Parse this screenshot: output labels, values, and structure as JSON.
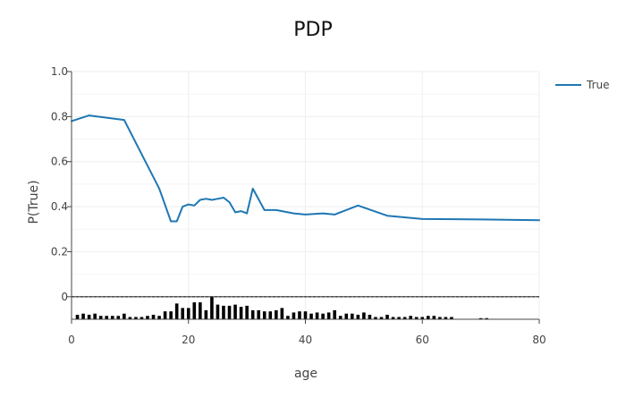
{
  "chart_data": {
    "type": "line",
    "title": "PDP",
    "xlabel": "age",
    "ylabel": "P(True)",
    "xlim": [
      0,
      80
    ],
    "ylim": [
      -0.1,
      1.0
    ],
    "x_ticks": [
      0,
      20,
      40,
      60,
      80
    ],
    "y_ticks": [
      0,
      0.2,
      0.4,
      0.6,
      0.8,
      1.0
    ],
    "y_tick_labels": [
      "0",
      "0.2",
      "0.4",
      "0.6",
      "0.8",
      "1.0"
    ],
    "grid": true,
    "legend_position": "top-right",
    "series": [
      {
        "name": "True",
        "color": "#1f77b4",
        "x": [
          0,
          3,
          9,
          15,
          17,
          18,
          19,
          20,
          21,
          22,
          23,
          24,
          25,
          26,
          27,
          28,
          29,
          30,
          31,
          33,
          35,
          38,
          40,
          43,
          45,
          49,
          54,
          60,
          70,
          80
        ],
        "y": [
          0.78,
          0.805,
          0.785,
          0.48,
          0.335,
          0.335,
          0.4,
          0.41,
          0.405,
          0.43,
          0.435,
          0.43,
          0.435,
          0.44,
          0.42,
          0.375,
          0.38,
          0.37,
          0.48,
          0.385,
          0.385,
          0.37,
          0.365,
          0.37,
          0.365,
          0.405,
          0.36,
          0.345,
          0.343,
          0.34
        ]
      }
    ],
    "rug": {
      "color": "#000000",
      "x": [
        1,
        2,
        3,
        4,
        5,
        6,
        7,
        8,
        9,
        10,
        11,
        12,
        13,
        14,
        15,
        16,
        17,
        18,
        19,
        20,
        21,
        22,
        23,
        24,
        25,
        26,
        27,
        28,
        29,
        30,
        31,
        32,
        33,
        34,
        35,
        36,
        37,
        38,
        39,
        40,
        41,
        42,
        43,
        44,
        45,
        46,
        47,
        48,
        49,
        50,
        51,
        52,
        53,
        54,
        55,
        56,
        57,
        58,
        59,
        60,
        61,
        62,
        63,
        64,
        65,
        70,
        71
      ],
      "values": [
        0.02,
        0.025,
        0.02,
        0.025,
        0.015,
        0.015,
        0.015,
        0.015,
        0.025,
        0.01,
        0.01,
        0.01,
        0.015,
        0.02,
        0.015,
        0.035,
        0.035,
        0.07,
        0.05,
        0.05,
        0.075,
        0.075,
        0.04,
        0.1,
        0.065,
        0.06,
        0.06,
        0.065,
        0.055,
        0.06,
        0.04,
        0.04,
        0.035,
        0.035,
        0.04,
        0.05,
        0.015,
        0.03,
        0.035,
        0.035,
        0.025,
        0.03,
        0.025,
        0.03,
        0.04,
        0.015,
        0.025,
        0.025,
        0.02,
        0.03,
        0.02,
        0.01,
        0.01,
        0.02,
        0.01,
        0.01,
        0.01,
        0.015,
        0.01,
        0.01,
        0.015,
        0.015,
        0.01,
        0.01,
        0.01,
        0.005,
        0.005
      ]
    }
  }
}
